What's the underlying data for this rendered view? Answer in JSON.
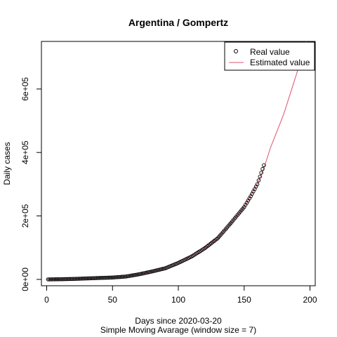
{
  "chart_data": {
    "type": "line",
    "title": "Argentina / Gompertz",
    "xlabel": "Days since 2020-03-20",
    "xlabel2": "Simple Moving Avarage (window size = 7)",
    "ylabel": "Daily cases",
    "xlim": [
      -4,
      204
    ],
    "ylim": [
      -20000,
      750000
    ],
    "x_ticks": [
      0,
      50,
      100,
      150,
      200
    ],
    "x_tick_labels": [
      "0",
      "50",
      "100",
      "150",
      "200"
    ],
    "y_ticks": [
      0,
      200000,
      400000,
      600000
    ],
    "y_tick_labels": [
      "0e+00",
      "2e+05",
      "4e+05",
      "6e+05"
    ],
    "grid": false,
    "legend_position": "top-right",
    "series": [
      {
        "name": "Real value",
        "style": "points",
        "color": "#000000",
        "x_start": 1,
        "x_end": 165,
        "x": [
          1,
          10,
          20,
          30,
          40,
          50,
          60,
          70,
          80,
          90,
          100,
          110,
          120,
          130,
          140,
          150,
          155,
          160,
          165
        ],
        "y": [
          0,
          500,
          1500,
          3000,
          4500,
          6000,
          9000,
          16000,
          25000,
          35000,
          52000,
          72000,
          98000,
          130000,
          178000,
          228000,
          262000,
          300000,
          360000
        ]
      },
      {
        "name": "Estimated value",
        "style": "line",
        "color": "#DF536B",
        "x": [
          0,
          20,
          40,
          50,
          60,
          70,
          80,
          90,
          100,
          110,
          120,
          130,
          140,
          150,
          160,
          165,
          170,
          180,
          190,
          200
        ],
        "y": [
          0,
          1500,
          4500,
          6000,
          9000,
          16000,
          25000,
          35000,
          52000,
          72000,
          98000,
          130000,
          178000,
          228000,
          300000,
          350000,
          415000,
          520000,
          650000,
          790000
        ]
      }
    ]
  }
}
